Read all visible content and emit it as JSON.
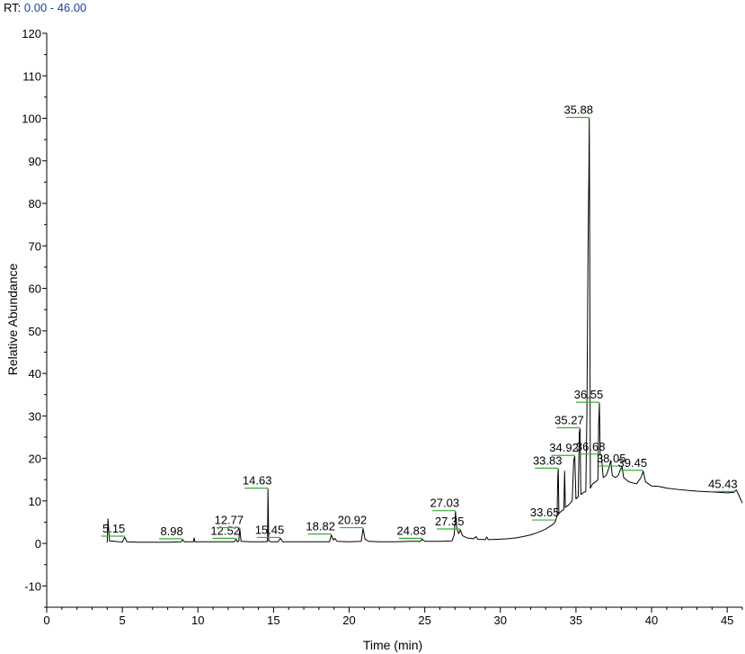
{
  "header": {
    "rt_prefix": "RT:",
    "rt_range": "0.00 - 46.00"
  },
  "colors": {
    "trace": "#000000",
    "baseline_marker": "#35b035",
    "header_range": "#1f3ea0"
  },
  "chart_data": {
    "type": "line",
    "xlabel": "Time (min)",
    "ylabel": "Relative Abundance",
    "xlim": [
      0,
      46
    ],
    "ylim": [
      -15,
      120
    ],
    "xticks": [
      0,
      5,
      10,
      15,
      20,
      25,
      30,
      35,
      40,
      45
    ],
    "yticks": [
      -10,
      0,
      10,
      20,
      30,
      40,
      50,
      60,
      70,
      80,
      90,
      100,
      110,
      120
    ],
    "grid": false,
    "peaks": [
      {
        "label": "5.15",
        "rt": 5.15,
        "height": 1.5
      },
      {
        "label": "8.98",
        "rt": 8.98,
        "height": 0.9
      },
      {
        "label": "12.52",
        "rt": 12.52,
        "height": 1.0
      },
      {
        "label": "12.77",
        "rt": 12.77,
        "height": 3.5
      },
      {
        "label": "14.63",
        "rt": 14.63,
        "height": 12.8
      },
      {
        "label": "15.45",
        "rt": 15.45,
        "height": 1.2
      },
      {
        "label": "18.82",
        "rt": 18.82,
        "height": 2.0
      },
      {
        "label": "20.92",
        "rt": 20.92,
        "height": 3.5
      },
      {
        "label": "24.83",
        "rt": 24.83,
        "height": 1.0
      },
      {
        "label": "27.03",
        "rt": 27.03,
        "height": 7.5
      },
      {
        "label": "27.35",
        "rt": 27.35,
        "height": 3.2
      },
      {
        "label": "33.65",
        "rt": 33.65,
        "height": 5.3
      },
      {
        "label": "33.83",
        "rt": 33.83,
        "height": 17.5
      },
      {
        "label": "34.92",
        "rt": 34.92,
        "height": 20.5
      },
      {
        "label": "35.27",
        "rt": 35.27,
        "height": 27.0
      },
      {
        "label": "35.88",
        "rt": 35.88,
        "height": 100
      },
      {
        "label": "36.55",
        "rt": 36.55,
        "height": 33.0
      },
      {
        "label": "36.68",
        "rt": 36.68,
        "height": 20.8
      },
      {
        "label": "38.05",
        "rt": 38.05,
        "height": 18.0
      },
      {
        "label": "39.45",
        "rt": 39.45,
        "height": 17.0
      },
      {
        "label": "45.43",
        "rt": 45.43,
        "height": 12.0
      }
    ],
    "trace": [
      [
        4.0,
        0.2
      ],
      [
        4.05,
        5.8
      ],
      [
        4.15,
        0.6
      ],
      [
        4.5,
        0.5
      ],
      [
        5.0,
        0.3
      ],
      [
        5.15,
        1.5
      ],
      [
        5.3,
        0.4
      ],
      [
        6.0,
        0.3
      ],
      [
        7.0,
        0.3
      ],
      [
        8.0,
        0.3
      ],
      [
        8.9,
        0.4
      ],
      [
        8.98,
        0.9
      ],
      [
        9.1,
        0.4
      ],
      [
        9.7,
        0.4
      ],
      [
        9.75,
        1.3
      ],
      [
        9.8,
        0.4
      ],
      [
        10.5,
        0.4
      ],
      [
        11.5,
        0.4
      ],
      [
        12.4,
        0.4
      ],
      [
        12.52,
        1.0
      ],
      [
        12.6,
        0.4
      ],
      [
        12.7,
        0.5
      ],
      [
        12.77,
        3.5
      ],
      [
        12.85,
        0.5
      ],
      [
        13.5,
        0.4
      ],
      [
        14.5,
        0.4
      ],
      [
        14.6,
        0.5
      ],
      [
        14.63,
        12.8
      ],
      [
        14.68,
        0.6
      ],
      [
        14.8,
        0.4
      ],
      [
        15.3,
        0.4
      ],
      [
        15.45,
        1.2
      ],
      [
        15.6,
        0.4
      ],
      [
        16.5,
        0.4
      ],
      [
        17.5,
        0.4
      ],
      [
        18.7,
        0.4
      ],
      [
        18.82,
        2.0
      ],
      [
        18.95,
        0.8
      ],
      [
        19.05,
        1.2
      ],
      [
        19.2,
        0.5
      ],
      [
        20.0,
        0.4
      ],
      [
        20.8,
        0.5
      ],
      [
        20.92,
        3.5
      ],
      [
        21.05,
        1.0
      ],
      [
        21.3,
        0.5
      ],
      [
        22.0,
        0.4
      ],
      [
        23.0,
        0.4
      ],
      [
        24.0,
        0.5
      ],
      [
        24.7,
        0.5
      ],
      [
        24.83,
        1.0
      ],
      [
        25.0,
        0.5
      ],
      [
        26.0,
        0.5
      ],
      [
        26.8,
        0.6
      ],
      [
        26.95,
        2.0
      ],
      [
        27.03,
        7.5
      ],
      [
        27.12,
        3.5
      ],
      [
        27.25,
        2.3
      ],
      [
        27.35,
        3.2
      ],
      [
        27.5,
        1.8
      ],
      [
        27.8,
        1.3
      ],
      [
        28.2,
        1.1
      ],
      [
        28.4,
        1.6
      ],
      [
        28.5,
        1.0
      ],
      [
        29.0,
        0.9
      ],
      [
        29.1,
        1.5
      ],
      [
        29.2,
        0.9
      ],
      [
        30.0,
        1.0
      ],
      [
        30.5,
        1.1
      ],
      [
        31.0,
        1.3
      ],
      [
        31.5,
        1.6
      ],
      [
        32.0,
        2.0
      ],
      [
        32.5,
        2.6
      ],
      [
        33.0,
        3.4
      ],
      [
        33.4,
        4.3
      ],
      [
        33.55,
        4.7
      ],
      [
        33.65,
        5.3
      ],
      [
        33.75,
        6.5
      ],
      [
        33.8,
        16.0
      ],
      [
        33.83,
        17.5
      ],
      [
        33.87,
        7.0
      ],
      [
        34.0,
        7.5
      ],
      [
        34.2,
        8.0
      ],
      [
        34.25,
        17.0
      ],
      [
        34.3,
        8.5
      ],
      [
        34.5,
        9.0
      ],
      [
        34.75,
        10.0
      ],
      [
        34.85,
        19.5
      ],
      [
        34.92,
        20.5
      ],
      [
        35.0,
        10.5
      ],
      [
        35.15,
        11.0
      ],
      [
        35.22,
        26.0
      ],
      [
        35.27,
        27.0
      ],
      [
        35.32,
        11.5
      ],
      [
        35.5,
        12.0
      ],
      [
        35.65,
        12.2
      ],
      [
        35.72,
        30.0
      ],
      [
        35.76,
        49.0
      ],
      [
        35.8,
        70.0
      ],
      [
        35.85,
        86.0
      ],
      [
        35.88,
        100
      ],
      [
        35.91,
        70.0
      ],
      [
        35.95,
        13.0
      ],
      [
        36.1,
        14.0
      ],
      [
        36.3,
        14.5
      ],
      [
        36.45,
        15.0
      ],
      [
        36.5,
        28.0
      ],
      [
        36.55,
        33.0
      ],
      [
        36.6,
        21.0
      ],
      [
        36.68,
        20.8
      ],
      [
        36.8,
        15.5
      ],
      [
        37.0,
        16.0
      ],
      [
        37.2,
        18.0
      ],
      [
        37.3,
        19.5
      ],
      [
        37.4,
        16.0
      ],
      [
        37.6,
        15.5
      ],
      [
        37.8,
        16.0
      ],
      [
        37.95,
        17.5
      ],
      [
        38.05,
        18.0
      ],
      [
        38.15,
        15.5
      ],
      [
        38.5,
        14.5
      ],
      [
        39.0,
        14.0
      ],
      [
        39.3,
        15.5
      ],
      [
        39.45,
        17.0
      ],
      [
        39.6,
        14.5
      ],
      [
        40.0,
        13.5
      ],
      [
        40.5,
        13.4
      ],
      [
        41.0,
        13.0
      ],
      [
        42.0,
        12.6
      ],
      [
        43.0,
        12.3
      ],
      [
        44.0,
        12.1
      ],
      [
        45.0,
        11.9
      ],
      [
        45.43,
        12.0
      ],
      [
        45.6,
        12.6
      ],
      [
        45.75,
        11.5
      ],
      [
        46.0,
        9.5
      ]
    ]
  }
}
